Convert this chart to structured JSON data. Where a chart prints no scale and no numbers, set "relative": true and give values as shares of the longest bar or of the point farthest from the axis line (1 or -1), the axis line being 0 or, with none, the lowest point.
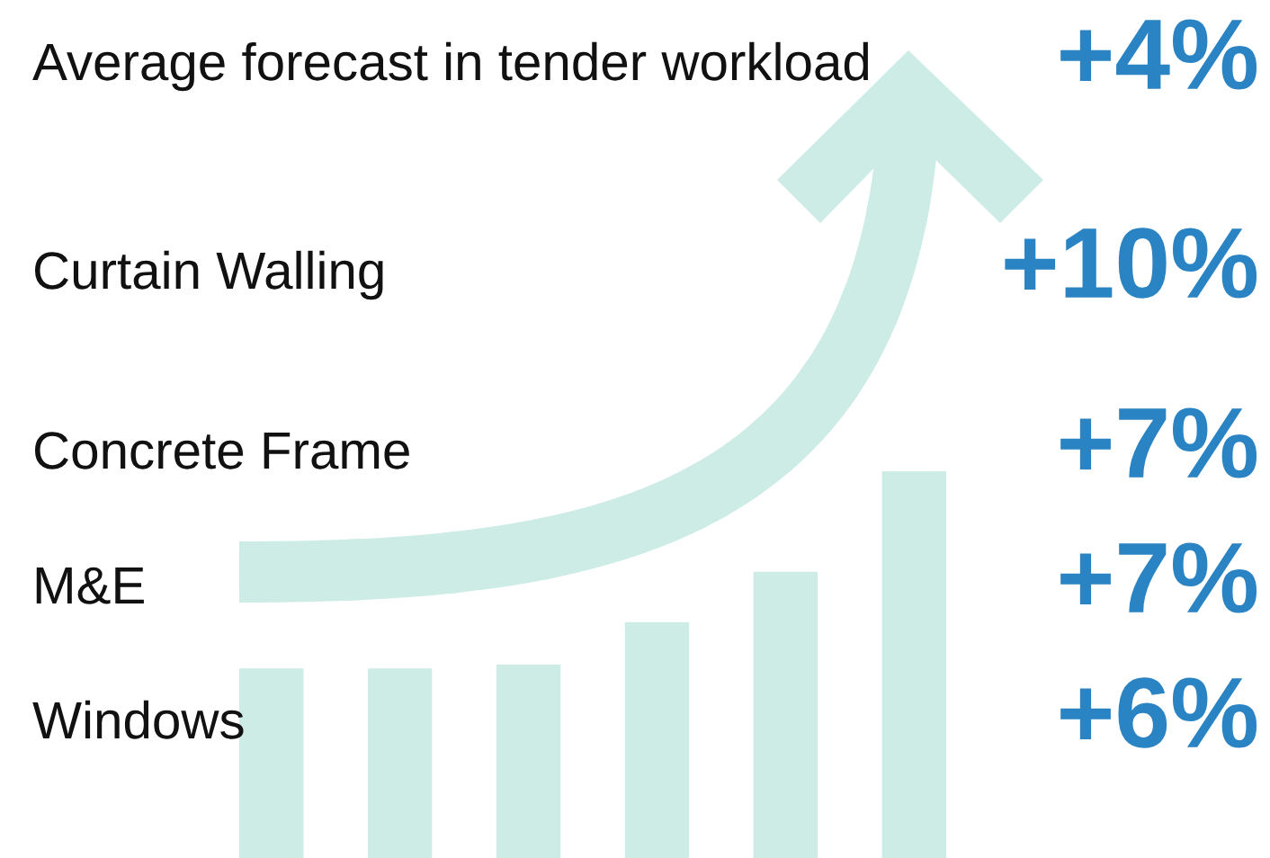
{
  "chart_data": [
    {
      "type": "other",
      "categories": [
        "Average forecast in tender workload",
        "Curtain Walling",
        "Concrete Frame",
        "M&E",
        "Windows"
      ],
      "value_labels": [
        "+4%",
        "+10%",
        "+7%",
        "+7%",
        "+6%"
      ],
      "color": "#2a84c4"
    },
    {
      "type": "bar",
      "relative": true,
      "categories": [
        null,
        null,
        null,
        null,
        null,
        null
      ],
      "values": [
        0.49,
        0.49,
        0.5,
        0.61,
        0.74,
        1
      ],
      "color": "#cdece6"
    }
  ]
}
